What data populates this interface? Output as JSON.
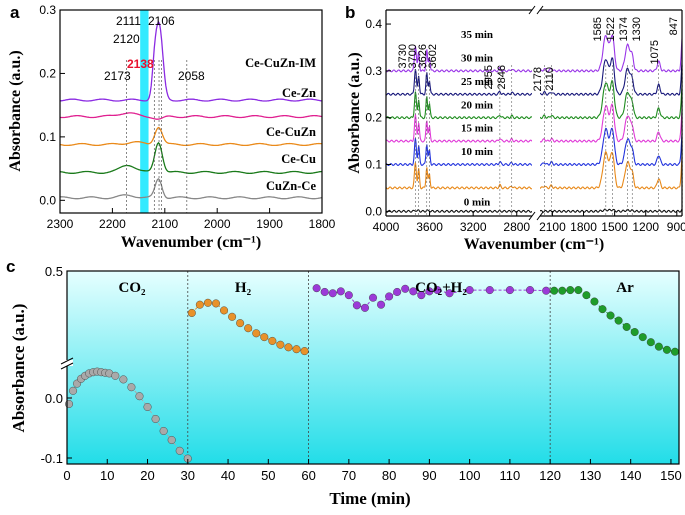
{
  "chart_data": [
    {
      "panel_label": "a",
      "type": "line",
      "xlabel": "Wavenumber (cm⁻¹)",
      "ylabel": "Absorbance (a.u.)",
      "xlim": [
        2300,
        1800
      ],
      "ylim": [
        -0.02,
        0.3
      ],
      "x_ticks": [
        "2300",
        "2200",
        "2100",
        "2000",
        "1900",
        "1800"
      ],
      "y_ticks": [
        "0.0",
        "0.1",
        "0.2",
        "0.3"
      ],
      "peak_labels": [
        "2111",
        "2106",
        "2120",
        "2173",
        "2138",
        "2058"
      ],
      "highlight_band": [
        2147,
        2131
      ],
      "highlight_color": "#00e5ff",
      "red_label_color": "#e8112d",
      "series": [
        {
          "name": "Ce-CuZn-IM",
          "color": "#8b2be2",
          "baseline": 0.158,
          "peaks": [
            [
              2111,
              0.118,
              10
            ],
            [
              2120,
              0.03,
              6
            ]
          ]
        },
        {
          "name": "Ce-Zn",
          "color": "#e02090",
          "baseline": 0.132,
          "peaks": [
            [
              2173,
              0.006,
              22
            ],
            [
              2111,
              -0.004,
              12
            ]
          ]
        },
        {
          "name": "Ce-CuZn",
          "color": "#ea8a1a",
          "baseline": 0.088,
          "peaks": [
            [
              2112,
              0.028,
              10
            ],
            [
              2160,
              0.004,
              20
            ]
          ]
        },
        {
          "name": "Ce-Cu",
          "color": "#1a7a1a",
          "baseline": 0.044,
          "peaks": [
            [
              2112,
              0.048,
              10
            ],
            [
              2170,
              0.012,
              20
            ]
          ]
        },
        {
          "name": "CuZn-Ce",
          "color": "#888888",
          "baseline": 0.004,
          "peaks": [
            [
              2112,
              0.03,
              9
            ],
            [
              2170,
              0.004,
              20
            ]
          ]
        }
      ]
    },
    {
      "panel_label": "b",
      "type": "line",
      "xlabel": "Wavenumber (cm⁻¹)",
      "ylabel": "Absorbance (a.u.)",
      "x_segments": [
        [
          4000,
          2660
        ],
        [
          2220,
          850
        ]
      ],
      "ylim": [
        -0.01,
        0.43
      ],
      "x_ticks": [
        "4000",
        "3600",
        "3200",
        "2800",
        "2100",
        "1800",
        "1500",
        "1200",
        "900"
      ],
      "y_ticks": [
        "0.0",
        "0.1",
        "0.2",
        "0.3",
        "0.4"
      ],
      "peak_labels": [
        "3730",
        "3700",
        "3626",
        "3602",
        "2955",
        "2846",
        "2178",
        "2110",
        "1585",
        "1522",
        "1374",
        "1330",
        "1075",
        "847"
      ],
      "series": [
        {
          "name": "0 min",
          "color": "#111111",
          "offset": 0.0,
          "scale": 0.04
        },
        {
          "name": "10 min",
          "color": "#e8891a",
          "offset": 0.05,
          "scale": 1.0
        },
        {
          "name": "15 min",
          "color": "#2233dd",
          "offset": 0.1,
          "scale": 1.0
        },
        {
          "name": "20 min",
          "color": "#e03ad8",
          "offset": 0.15,
          "scale": 1.0
        },
        {
          "name": "25 min",
          "color": "#1e8c1e",
          "offset": 0.2,
          "scale": 1.0
        },
        {
          "name": "30 min",
          "color": "#17177a",
          "offset": 0.25,
          "scale": 1.0
        },
        {
          "name": "35 min",
          "color": "#9a35e8",
          "offset": 0.3,
          "scale": 1.0
        }
      ]
    },
    {
      "panel_label": "c",
      "type": "scatter",
      "xlabel": "Time (min)",
      "ylabel": "Absorbance (a.u.)",
      "xlim": [
        0,
        152
      ],
      "x_ticks": [
        "0",
        "10",
        "20",
        "30",
        "40",
        "50",
        "60",
        "70",
        "80",
        "90",
        "100",
        "110",
        "120",
        "130",
        "140",
        "150"
      ],
      "y_ticks_lower": [
        "0.0",
        "-0.1"
      ],
      "y_ticks_upper": [
        "0.5"
      ],
      "dividers": [
        30,
        60,
        120
      ],
      "background_gradient": [
        "#e6ffff",
        "#22dde8"
      ],
      "phases": [
        {
          "label": "CO₂",
          "color": "#a9a9a9",
          "x": [
            0.5,
            1.5,
            2.5,
            3.5,
            4.5,
            5.5,
            6.5,
            7.5,
            8.5,
            9.5,
            10.5,
            12,
            14,
            16,
            18,
            20,
            22,
            24,
            26,
            28,
            30
          ],
          "y": [
            -0.01,
            0.012,
            0.024,
            0.032,
            0.037,
            0.041,
            0.043,
            0.044,
            0.043,
            0.042,
            0.041,
            0.037,
            0.031,
            0.018,
            0.003,
            -0.015,
            -0.035,
            -0.055,
            -0.07,
            -0.088,
            -0.101
          ]
        },
        {
          "label": "H₂",
          "color": "#e8922a",
          "x": [
            31,
            33,
            35,
            37,
            39,
            41,
            43,
            45,
            47,
            49,
            51,
            53,
            55,
            57,
            59
          ],
          "y": [
            0.434,
            0.447,
            0.45,
            0.449,
            0.438,
            0.428,
            0.418,
            0.41,
            0.402,
            0.396,
            0.39,
            0.384,
            0.38,
            0.377,
            0.374
          ]
        },
        {
          "label": "CO₂+H₂",
          "color": "#9b3ad8",
          "x": [
            62,
            64,
            66,
            68,
            70,
            72,
            74,
            76,
            78,
            80,
            82,
            84,
            86,
            88,
            90,
            92,
            95,
            100,
            105,
            110,
            115,
            119
          ],
          "y": [
            0.473,
            0.467,
            0.465,
            0.468,
            0.462,
            0.446,
            0.442,
            0.458,
            0.447,
            0.46,
            0.467,
            0.472,
            0.468,
            0.462,
            0.468,
            0.47,
            0.465,
            0.47,
            0.47,
            0.47,
            0.47,
            0.469
          ]
        },
        {
          "label": "Ar",
          "color": "#1e9c2a",
          "x": [
            121,
            123,
            125,
            127,
            129,
            131,
            133,
            135,
            137,
            139,
            141,
            143,
            145,
            147,
            149,
            151
          ],
          "y": [
            0.469,
            0.469,
            0.47,
            0.47,
            0.462,
            0.452,
            0.44,
            0.43,
            0.422,
            0.412,
            0.404,
            0.396,
            0.388,
            0.381,
            0.376,
            0.373
          ]
        }
      ]
    }
  ]
}
